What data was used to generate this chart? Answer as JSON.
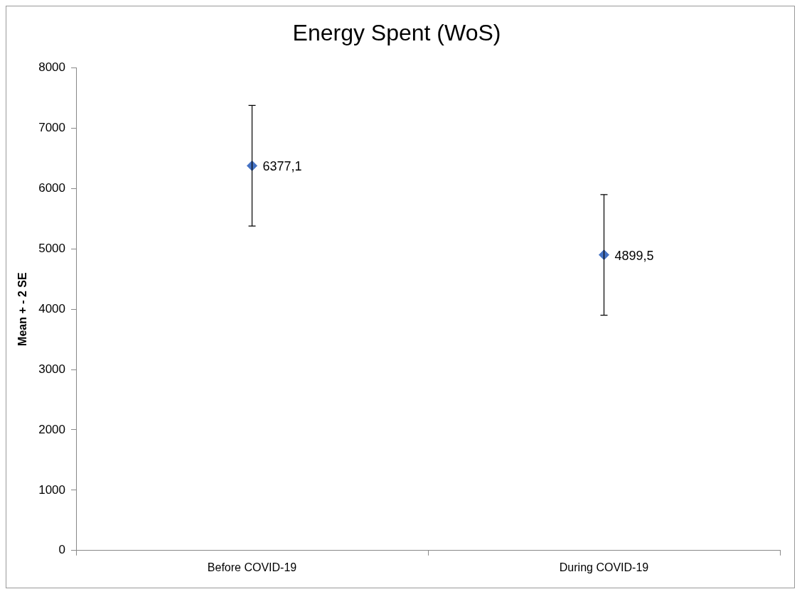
{
  "chart_data": {
    "type": "scatter",
    "title": "Energy Spent (WoS)",
    "ylabel": "Mean + - 2 SE",
    "categories": [
      "Before COVID-19",
      "During COVID-19"
    ],
    "series": [
      {
        "color": "#4472c4",
        "values": [
          6377.1,
          4899.5
        ],
        "errors": [
          1000,
          1000
        ],
        "value_labels": [
          "6377,1",
          "4899,5"
        ]
      }
    ],
    "ylim": [
      0,
      8000
    ],
    "yticks": [
      0,
      1000,
      2000,
      3000,
      4000,
      5000,
      6000,
      7000,
      8000
    ],
    "grid": false,
    "legend": false,
    "marker": "diamond"
  }
}
